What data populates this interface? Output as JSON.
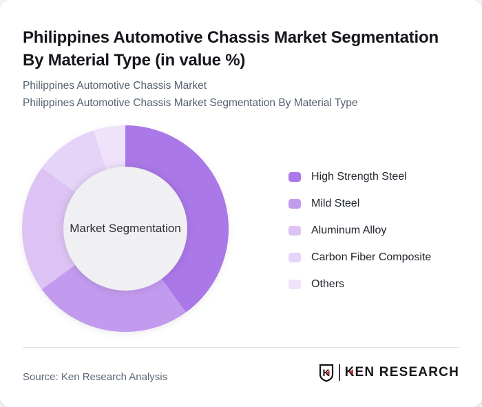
{
  "page": {
    "title_lines": [
      "Philippines Automotive Chassis Market Segmentation",
      "By Material Type (in value %)"
    ],
    "subtitle_lines": [
      "Philippines Automotive Chassis Market",
      "Philippines Automotive Chassis Market Segmentation By Material Type"
    ]
  },
  "chart_data": {
    "type": "pie",
    "variant": "donut",
    "title": "Philippines Automotive Chassis Market Segmentation By Material Type (in value %)",
    "center_label": "Market Segmentation",
    "categories": [
      "High Strength Steel",
      "Mild Steel",
      "Aluminum Alloy",
      "Carbon Fiber Composite",
      "Others"
    ],
    "values": [
      40,
      25,
      20,
      10,
      5
    ],
    "unit": "%",
    "colors": [
      "#ab78e8",
      "#c29aee",
      "#dcc3f4",
      "#e5d3f8",
      "#efe3fb"
    ],
    "start_angle_deg": 0,
    "direction": "clockwise",
    "legend_position": "right",
    "inner_radius_ratio": 0.6,
    "center_fill": "#f0eff1"
  },
  "footer": {
    "source": "Source: Ken Research Analysis",
    "logo": {
      "emblem_letter": "K",
      "brand": "KEN RESEARCH",
      "accent_color": "#c63431"
    }
  }
}
